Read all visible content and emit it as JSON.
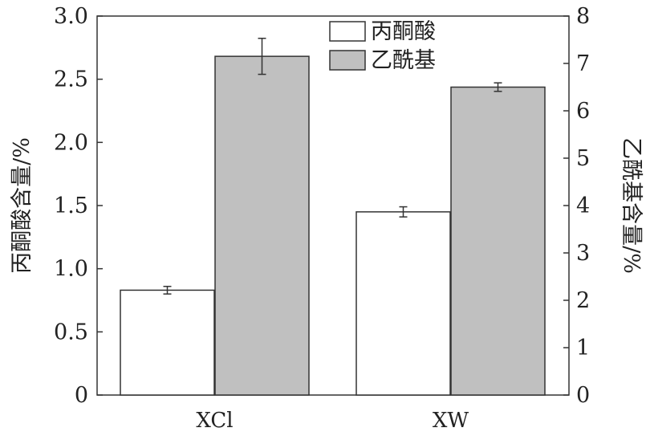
{
  "chart_data": {
    "type": "bar",
    "categories": [
      "XCl",
      "XW"
    ],
    "series": [
      {
        "name": "丙酮酸",
        "axis": "left",
        "values": [
          0.83,
          1.45
        ],
        "errors": [
          0.03,
          0.04
        ],
        "color": "#ffffff"
      },
      {
        "name": "乙酰基",
        "axis": "right",
        "values": [
          7.15,
          6.5
        ],
        "errors": [
          0.38,
          0.09
        ],
        "color": "#c0c0c0"
      }
    ],
    "ylabel_left": "丙酮酸含量/%",
    "ylabel_right": "乙酰基含量/%",
    "ylim_left": [
      0,
      3.0
    ],
    "ylim_right": [
      0,
      8
    ],
    "yticks_left": [
      "0",
      "0.5",
      "1.0",
      "1.5",
      "2.0",
      "2.5",
      "3.0"
    ],
    "yticks_right": [
      "0",
      "1",
      "2",
      "3",
      "4",
      "5",
      "6",
      "7",
      "8"
    ],
    "legend_position": "top-center",
    "grid": false
  }
}
